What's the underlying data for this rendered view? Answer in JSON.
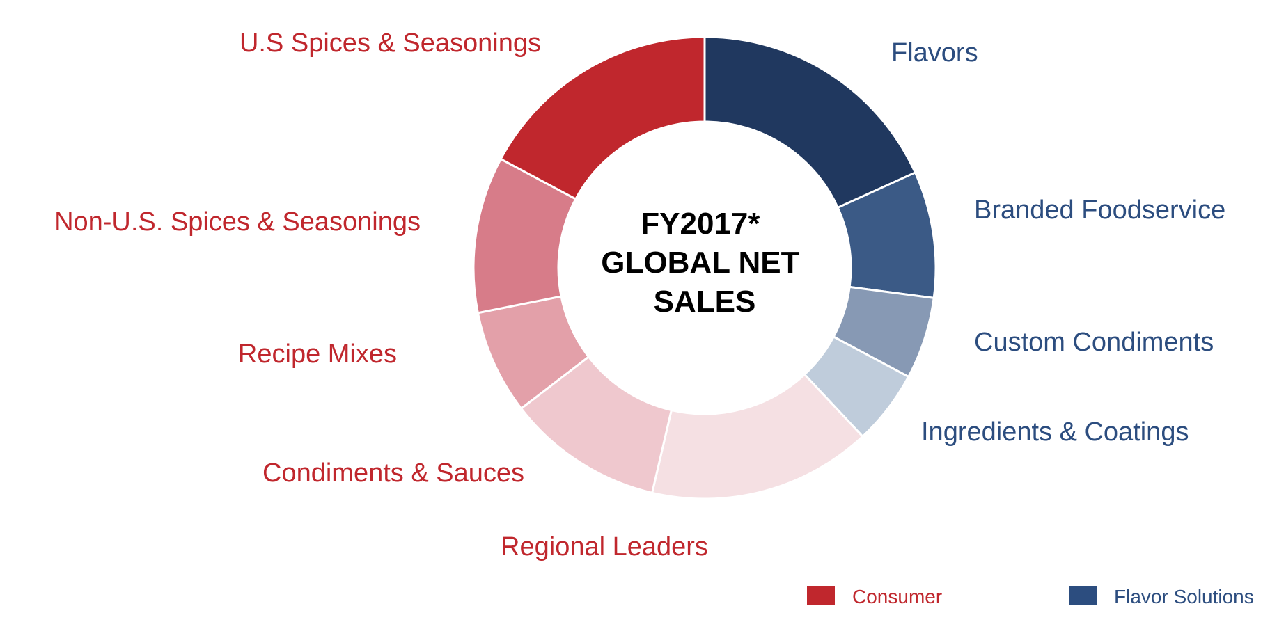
{
  "chart_data": {
    "type": "pie",
    "variant": "donut",
    "center_title": [
      "FY2017*",
      "GLOBAL NET",
      "SALES"
    ],
    "start_angle_deg": 0,
    "direction": "clockwise",
    "units": "percent_share_estimated",
    "series": [
      {
        "name": "Consumer",
        "color": "#c0272d"
      },
      {
        "name": "Flavor Solutions",
        "color": "#2c4d7f"
      }
    ],
    "slices": [
      {
        "label": "Flavors",
        "value": 17.5,
        "series": "Flavor Solutions",
        "color": "#20385f",
        "label_color": "#2c4d7f"
      },
      {
        "label": "Branded Foodservice",
        "value": 8.5,
        "series": "Flavor Solutions",
        "color": "#3b5a86",
        "label_color": "#2c4d7f"
      },
      {
        "label": "Custom Condiments",
        "value": 5.5,
        "series": "Flavor Solutions",
        "color": "#8799b4",
        "label_color": "#2c4d7f"
      },
      {
        "label": "Ingredients & Coatings",
        "value": 5.0,
        "series": "Flavor Solutions",
        "color": "#bfccdb",
        "label_color": "#2c4d7f"
      },
      {
        "label": "Regional Leaders",
        "value": 15.0,
        "series": "Consumer",
        "color": "#f5e0e3",
        "label_color": "#c0272d"
      },
      {
        "label": "Condiments & Sauces",
        "value": 10.5,
        "series": "Consumer",
        "color": "#efc8ce",
        "label_color": "#c0272d"
      },
      {
        "label": "Recipe Mixes",
        "value": 7.0,
        "series": "Consumer",
        "color": "#e3a0a9",
        "label_color": "#c0272d"
      },
      {
        "label": "Non-U.S. Spices & Seasonings",
        "value": 10.5,
        "series": "Consumer",
        "color": "#d77c89",
        "label_color": "#c0272d"
      },
      {
        "label": "U.S Spices & Seasonings",
        "value": 16.5,
        "series": "Consumer",
        "color": "#c0272d",
        "label_color": "#c0272d"
      }
    ],
    "legend": {
      "placement": "bottom-right",
      "entries": [
        {
          "label": "Consumer",
          "color": "#c0272d"
        },
        {
          "label": "Flavor Solutions",
          "color": "#2c4d7f"
        }
      ]
    }
  }
}
